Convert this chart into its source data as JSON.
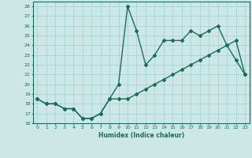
{
  "xlabel": "Humidex (Indice chaleur)",
  "ylabel": "",
  "bg_color": "#cce8e4",
  "grid_color": "#aad4ce",
  "line_color": "#1a6b5a",
  "x_line1": [
    0,
    1,
    2,
    3,
    4,
    5,
    6,
    7,
    8,
    9,
    10,
    11,
    12,
    13,
    14,
    15,
    16,
    17,
    18,
    19,
    20,
    21,
    22,
    23
  ],
  "y_line1": [
    18.5,
    18.0,
    18.0,
    17.5,
    17.5,
    16.5,
    16.5,
    17.0,
    18.5,
    20.0,
    28.0,
    25.5,
    22.0,
    23.0,
    24.5,
    24.5,
    24.5,
    25.5,
    25.0,
    25.5,
    26.0,
    24.0,
    22.5,
    21.0
  ],
  "x_line2": [
    0,
    1,
    2,
    3,
    4,
    5,
    6,
    7,
    8,
    9,
    10,
    11,
    12,
    13,
    14,
    15,
    16,
    17,
    18,
    19,
    20,
    21,
    22,
    23
  ],
  "y_line2": [
    18.5,
    18.0,
    18.0,
    17.5,
    17.5,
    16.5,
    16.5,
    17.0,
    18.5,
    18.5,
    18.5,
    19.0,
    19.5,
    20.0,
    20.5,
    21.0,
    21.5,
    22.0,
    22.5,
    23.0,
    23.5,
    24.0,
    24.5,
    21.0
  ],
  "ylim": [
    16,
    28.5
  ],
  "xlim": [
    -0.5,
    23.5
  ],
  "yticks": [
    16,
    17,
    18,
    19,
    20,
    21,
    22,
    23,
    24,
    25,
    26,
    27,
    28
  ],
  "xticks": [
    0,
    1,
    2,
    3,
    4,
    5,
    6,
    7,
    8,
    9,
    10,
    11,
    12,
    13,
    14,
    15,
    16,
    17,
    18,
    19,
    20,
    21,
    22,
    23
  ],
  "marker": "D",
  "marker_size": 2,
  "line_width": 1.0
}
